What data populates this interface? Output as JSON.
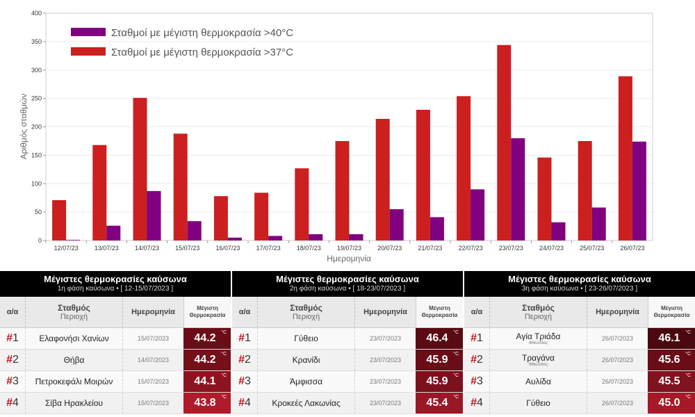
{
  "chart_data": {
    "type": "bar",
    "categories": [
      "12/07/23",
      "13/07/23",
      "14/07/23",
      "15/07/23",
      "16/07/23",
      "17/07/23",
      "18/07/23",
      "19/07/23",
      "20/07/23",
      "21/07/23",
      "22/07/23",
      "23/07/23",
      "24/07/23",
      "25/07/23",
      "26/07/23"
    ],
    "series": [
      {
        "name": "Σταθμοί με μέγιστη θερμοκρασία >37°C",
        "color": "#cc1f1f",
        "values": [
          71,
          168,
          251,
          188,
          78,
          84,
          127,
          175,
          214,
          230,
          254,
          344,
          146,
          175,
          289
        ]
      },
      {
        "name": "Σταθμοί με μέγιστη θερμοκρασία >40°C",
        "color": "#800080",
        "values": [
          1,
          26,
          87,
          34,
          5,
          8,
          11,
          11,
          55,
          41,
          90,
          180,
          32,
          58,
          174
        ]
      }
    ],
    "legend_order": [
      "Σταθμοί με μέγιστη θερμοκρασία >40°C",
      "Σταθμοί με μέγιστη θερμοκρασία >37°C"
    ],
    "legend_position": "top-left",
    "xlabel": "Ημερομηνία",
    "ylabel": "Αριθμός σταθμών",
    "ylim": [
      0,
      400
    ],
    "yticks": [
      0,
      50,
      100,
      150,
      200,
      250,
      300,
      350,
      400
    ],
    "grid": true
  },
  "panels": [
    {
      "title": "Μέγιστες θερμοκρασίες καύσωνα",
      "subtitle": "1η φάση καύσωνα • [ 12-15/07/2023 ]",
      "rows": [
        {
          "rank": "1",
          "station": "Ελαφονήσι Χανίων",
          "sub": "",
          "date": "15/07/2023",
          "temp": "44.2",
          "color": "#6b0d17"
        },
        {
          "rank": "2",
          "station": "Θήβα",
          "sub": "",
          "date": "14/07/2023",
          "temp": "44.2",
          "color": "#75101b"
        },
        {
          "rank": "3",
          "station": "Πετροκεφάλι Μοιρών",
          "sub": "",
          "date": "15/07/2023",
          "temp": "44.1",
          "color": "#8c1421"
        },
        {
          "rank": "4",
          "station": "Σίβα Ηρακλείου",
          "sub": "",
          "date": "15/07/2023",
          "temp": "43.8",
          "color": "#b01a2a"
        }
      ]
    },
    {
      "title": "Μέγιστες θερμοκρασίες καύσωνα",
      "subtitle": "2η φάση καύσωνα • [ 18-23/07/2023 ]",
      "rows": [
        {
          "rank": "1",
          "station": "Γύθειο",
          "sub": "",
          "date": "23/07/2023",
          "temp": "46.4",
          "color": "#5a0a13"
        },
        {
          "rank": "2",
          "station": "Κρανίδι",
          "sub": "",
          "date": "23/07/2023",
          "temp": "45.9",
          "color": "#6b0d17"
        },
        {
          "rank": "3",
          "station": "Άμφισσα",
          "sub": "",
          "date": "23/07/2023",
          "temp": "45.9",
          "color": "#7a111d"
        },
        {
          "rank": "4",
          "station": "Κροκεές Λακωνίας",
          "sub": "",
          "date": "23/07/2023",
          "temp": "45.4",
          "color": "#9a1725"
        }
      ]
    },
    {
      "title": "Μέγιστες θερμοκρασίες καύσωνα",
      "subtitle": "3η φάση καύσωνα • [ 23-26/07/2023 ]",
      "rows": [
        {
          "rank": "1",
          "station": "Αγία Τριάδα",
          "sub": "Φθιώτιδος",
          "date": "26/07/2023",
          "temp": "46.1",
          "color": "#4a0810"
        },
        {
          "rank": "2",
          "station": "Τραγάνα",
          "sub": "Φθιώτιδος",
          "date": "26/07/2023",
          "temp": "45.6",
          "color": "#6b0d17"
        },
        {
          "rank": "3",
          "station": "Αυλίδα",
          "sub": "",
          "date": "26/07/2023",
          "temp": "45.5",
          "color": "#801320"
        },
        {
          "rank": "4",
          "station": "Γύθειο",
          "sub": "",
          "date": "26/07/2023",
          "temp": "45.0",
          "color": "#a81928"
        }
      ]
    }
  ],
  "table_headers": {
    "rank": "α/α",
    "station": "Σταθμός",
    "region": "Περιοχή",
    "date": "Ημερομηνία",
    "max_line1": "Μέγιστη",
    "max_line2": "Θερμοκρασία"
  },
  "rank_prefix": "#",
  "degree_unit": "°C"
}
